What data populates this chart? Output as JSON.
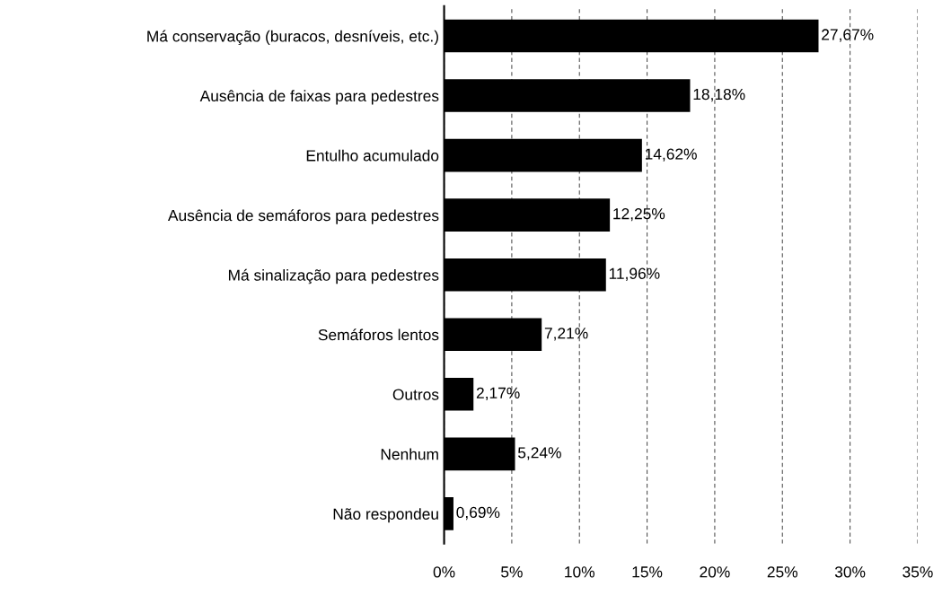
{
  "chart_data": {
    "type": "bar",
    "orientation": "horizontal",
    "categories": [
      "Má conservação (buracos, desníveis, etc.)",
      "Ausência de faixas para pedestres",
      "Entulho acumulado",
      "Ausência de semáforos para pedestres",
      "Má sinalização para pedestres",
      "Semáforos lentos",
      "Outros",
      "Nenhum",
      "Não respondeu"
    ],
    "values": [
      27.67,
      18.18,
      14.62,
      12.25,
      11.96,
      7.21,
      2.17,
      5.24,
      0.69
    ],
    "value_labels": [
      "27,67%",
      "18,18%",
      "14,62%",
      "12,25%",
      "11,96%",
      "7,21%",
      "2,17%",
      "5,24%",
      "0,69%"
    ],
    "color": "#000000",
    "xlim": [
      0,
      35
    ],
    "xticks": [
      {
        "value": 0,
        "label": "0%"
      },
      {
        "value": 5,
        "label": "5%"
      },
      {
        "value": 10,
        "label": "10%"
      },
      {
        "value": 15,
        "label": "15%"
      },
      {
        "value": 20,
        "label": "20%"
      },
      {
        "value": 25,
        "label": "25%"
      },
      {
        "value": 30,
        "label": "30%"
      },
      {
        "value": 35,
        "label": "35%"
      }
    ],
    "grid": "x"
  }
}
